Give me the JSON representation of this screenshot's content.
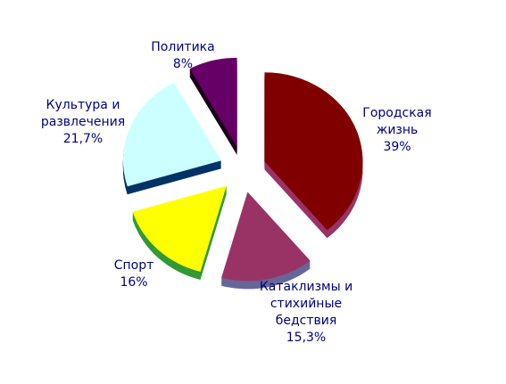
{
  "chart_data": {
    "type": "pie",
    "categories": [
      "Городская жизнь",
      "Катаклизмы и стихийные бедствия",
      "Спорт",
      "Культура и развлечения",
      "Политика"
    ],
    "values": [
      39,
      15.3,
      16,
      21.7,
      8
    ],
    "value_labels": [
      "39%",
      "15,3%",
      "16%",
      "21,7%",
      "8%"
    ],
    "colors": [
      "#800000",
      "#993366",
      "#ffff00",
      "#ccffff",
      "#660066"
    ],
    "depth_colors": [
      "#993366",
      "#666699",
      "#339933",
      "#003366",
      "#1a001a"
    ]
  }
}
